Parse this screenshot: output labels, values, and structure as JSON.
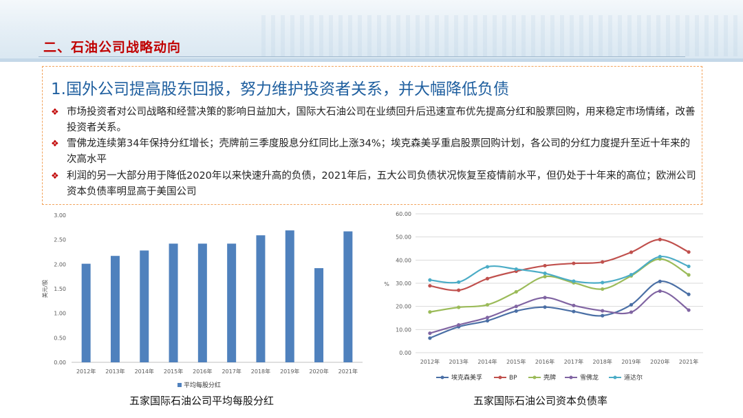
{
  "header": {
    "section_title": "二、石油公司战略动向"
  },
  "content": {
    "subtitle": "1.国外公司提高股东回报，努力维护投资者关系，并大幅降低负债",
    "bullets": [
      "市场投资者对公司战略和经营决策的影响日益加大，国际大石油公司在业绩回升后迅速宣布优先提高分红和股票回购，用来稳定市场情绪，改善投资者关系。",
      "雪佛龙连续第34年保持分红增长；壳牌前三季度股息分红同比上涨34%；埃克森美孚重启股票回购计划，各公司的分红力度提升至近十年来的次高水平",
      "利润的另一大部分用于降低2020年以来快速升高的负债，2021年后，五大公司负债状况恢复至疫情前水平，但仍处于十年来的高位；欧洲公司资本负债率明显高于美国公司"
    ],
    "bullet_icon": "diamond-bullet-icon"
  },
  "chart_data": [
    {
      "type": "bar",
      "caption": "五家国际石油公司平均每股分红",
      "ylabel": "美元/股",
      "categories": [
        "2012年",
        "2013年",
        "2014年",
        "2015年",
        "2016年",
        "2017年",
        "2018年",
        "2019年",
        "2020年",
        "2021年"
      ],
      "series": [
        {
          "name": "平均每股分红",
          "color": "#4f81bd",
          "values": [
            2.01,
            2.17,
            2.28,
            2.42,
            2.42,
            2.42,
            2.59,
            2.69,
            1.92,
            2.67
          ]
        }
      ],
      "ylim": [
        0,
        3.0
      ],
      "yticks": [
        "0.00",
        "0.50",
        "1.00",
        "1.50",
        "2.00",
        "2.50",
        "3.00"
      ],
      "grid": false,
      "legend": "bottom"
    },
    {
      "type": "line",
      "caption": "五家国际石油公司资本负债率",
      "ylabel": "%",
      "categories": [
        "2012年",
        "2013年",
        "2014年",
        "2015年",
        "2016年",
        "2017年",
        "2018年",
        "2019年",
        "2020年",
        "2021年"
      ],
      "series": [
        {
          "name": "埃克森美孚",
          "color": "#4a6fa5",
          "values": [
            6.3,
            11.2,
            13.8,
            18.0,
            19.7,
            17.8,
            16.0,
            20.7,
            30.8,
            25.2
          ]
        },
        {
          "name": "BP",
          "color": "#c0504d",
          "values": [
            28.9,
            27.0,
            32.0,
            35.2,
            37.6,
            38.6,
            39.2,
            43.4,
            48.9,
            43.5
          ]
        },
        {
          "name": "壳牌",
          "color": "#9bbb59",
          "values": [
            17.6,
            19.6,
            20.7,
            26.3,
            32.9,
            30.2,
            27.5,
            33.2,
            40.5,
            33.6
          ]
        },
        {
          "name": "雪佛龙",
          "color": "#8064a2",
          "values": [
            8.4,
            12.0,
            15.2,
            20.0,
            23.8,
            20.4,
            18.1,
            17.5,
            26.6,
            18.4
          ]
        },
        {
          "name": "道达尔",
          "color": "#4bacc6",
          "values": [
            31.4,
            30.5,
            37.1,
            36.1,
            34.3,
            30.9,
            30.3,
            33.7,
            41.5,
            37.3
          ]
        }
      ],
      "ylim": [
        0,
        60
      ],
      "yticks": [
        "0.00",
        "10.00",
        "20.00",
        "30.00",
        "40.00",
        "50.00",
        "60.00"
      ],
      "grid": true,
      "legend": "bottom"
    }
  ]
}
